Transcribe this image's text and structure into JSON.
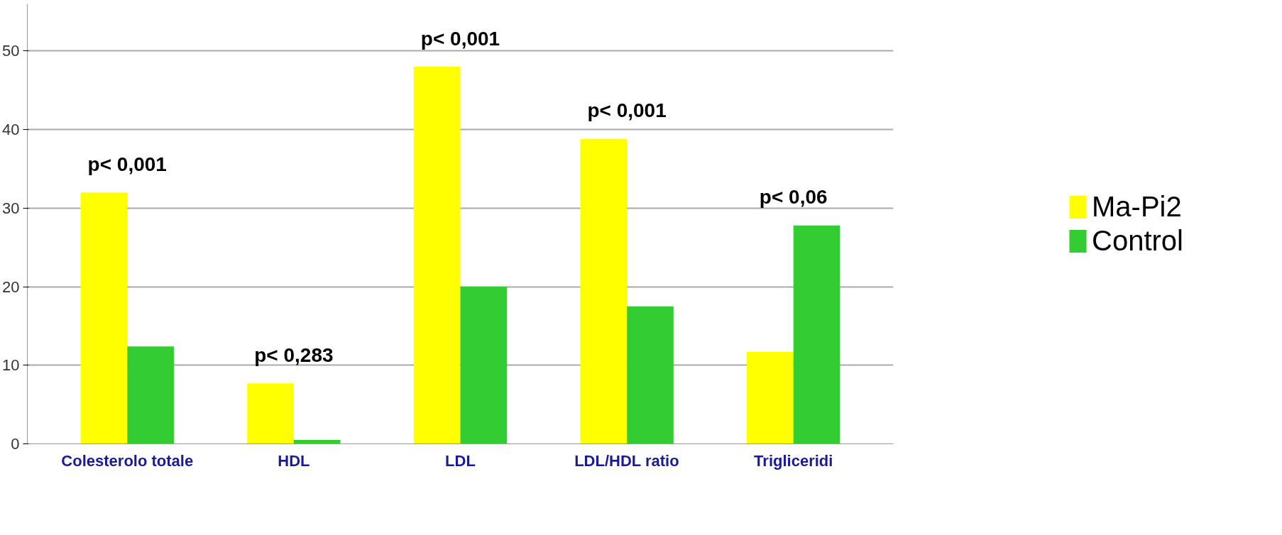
{
  "chart_data": {
    "type": "bar",
    "categories": [
      "Colesterolo totale",
      "HDL",
      "LDL",
      "LDL/HDL ratio",
      "Trigliceridi"
    ],
    "series": [
      {
        "name": "Ma-Pi2",
        "color": "#ffff00",
        "values": [
          32,
          7.7,
          48,
          38.8,
          11.7
        ]
      },
      {
        "name": "Control",
        "color": "#33cc33",
        "values": [
          12.4,
          0.5,
          20,
          17.5,
          27.8
        ]
      }
    ],
    "ylim": [
      0,
      56
    ],
    "yticks": [
      0,
      10,
      20,
      30,
      40,
      50
    ],
    "grid": "y",
    "legend": "right",
    "annotations": [
      "p< 0,001",
      "p< 0,283",
      "p< 0,001",
      "p< 0,001",
      "p< 0,06"
    ]
  }
}
